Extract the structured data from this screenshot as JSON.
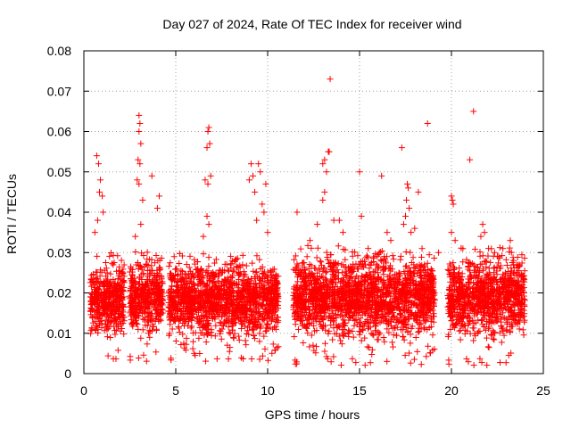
{
  "chart_data": {
    "type": "scatter",
    "title": "Day 027 of 2024, Rate Of TEC Index for receiver wind",
    "xlabel": "GPS time / hours",
    "ylabel": "ROTI / TECUs",
    "xlim": [
      0,
      25
    ],
    "ylim": [
      0,
      0.08
    ],
    "xticks": [
      0,
      5,
      10,
      15,
      20,
      25
    ],
    "xtick_labels": [
      "0",
      "5",
      "10",
      "15",
      "20",
      "25"
    ],
    "yticks": [
      0,
      0.01,
      0.02,
      0.03,
      0.04,
      0.05,
      0.06,
      0.07,
      0.08
    ],
    "ytick_labels": [
      "0",
      "0.01",
      "0.02",
      "0.03",
      "0.04",
      "0.05",
      "0.06",
      "0.07",
      "0.08"
    ],
    "grid": true,
    "marker": "plus",
    "color": "#ff0000",
    "series": [
      {
        "name": "ROTI",
        "segments": [
          {
            "start": 0.35,
            "end": 2.2,
            "low": 0.003,
            "high": 0.03
          },
          {
            "start": 2.5,
            "end": 4.3,
            "low": 0.003,
            "high": 0.031
          },
          {
            "start": 4.6,
            "end": 10.6,
            "low": 0.003,
            "high": 0.03
          },
          {
            "start": 11.4,
            "end": 19.1,
            "low": 0.002,
            "high": 0.032
          },
          {
            "start": 19.8,
            "end": 24.0,
            "low": 0.002,
            "high": 0.032
          }
        ],
        "spikes": [
          {
            "x": 0.7,
            "y": 0.054
          },
          {
            "x": 0.8,
            "y": 0.052
          },
          {
            "x": 0.9,
            "y": 0.048
          },
          {
            "x": 0.85,
            "y": 0.045
          },
          {
            "x": 1.0,
            "y": 0.044
          },
          {
            "x": 1.05,
            "y": 0.04
          },
          {
            "x": 0.75,
            "y": 0.038
          },
          {
            "x": 0.6,
            "y": 0.035
          },
          {
            "x": 3.0,
            "y": 0.064
          },
          {
            "x": 3.05,
            "y": 0.062
          },
          {
            "x": 3.0,
            "y": 0.06
          },
          {
            "x": 3.1,
            "y": 0.057
          },
          {
            "x": 2.95,
            "y": 0.053
          },
          {
            "x": 3.05,
            "y": 0.052
          },
          {
            "x": 2.9,
            "y": 0.048
          },
          {
            "x": 3.0,
            "y": 0.047
          },
          {
            "x": 3.2,
            "y": 0.043
          },
          {
            "x": 3.1,
            "y": 0.037
          },
          {
            "x": 2.8,
            "y": 0.034
          },
          {
            "x": 3.7,
            "y": 0.049
          },
          {
            "x": 4.1,
            "y": 0.044
          },
          {
            "x": 4.0,
            "y": 0.041
          },
          {
            "x": 6.8,
            "y": 0.061
          },
          {
            "x": 6.75,
            "y": 0.06
          },
          {
            "x": 6.85,
            "y": 0.057
          },
          {
            "x": 6.7,
            "y": 0.056
          },
          {
            "x": 6.6,
            "y": 0.048
          },
          {
            "x": 6.75,
            "y": 0.047
          },
          {
            "x": 6.9,
            "y": 0.049
          },
          {
            "x": 6.7,
            "y": 0.039
          },
          {
            "x": 6.8,
            "y": 0.037
          },
          {
            "x": 6.5,
            "y": 0.034
          },
          {
            "x": 9.1,
            "y": 0.052
          },
          {
            "x": 9.2,
            "y": 0.049
          },
          {
            "x": 9.0,
            "y": 0.048
          },
          {
            "x": 9.3,
            "y": 0.045
          },
          {
            "x": 9.5,
            "y": 0.052
          },
          {
            "x": 9.6,
            "y": 0.05
          },
          {
            "x": 9.7,
            "y": 0.042
          },
          {
            "x": 9.8,
            "y": 0.04
          },
          {
            "x": 9.9,
            "y": 0.047
          },
          {
            "x": 9.4,
            "y": 0.038
          },
          {
            "x": 10.0,
            "y": 0.035
          },
          {
            "x": 11.6,
            "y": 0.04
          },
          {
            "x": 12.3,
            "y": 0.033
          },
          {
            "x": 12.7,
            "y": 0.037
          },
          {
            "x": 13.0,
            "y": 0.052
          },
          {
            "x": 13.1,
            "y": 0.053
          },
          {
            "x": 13.2,
            "y": 0.05
          },
          {
            "x": 13.3,
            "y": 0.055
          },
          {
            "x": 13.4,
            "y": 0.073
          },
          {
            "x": 13.35,
            "y": 0.055
          },
          {
            "x": 13.1,
            "y": 0.045
          },
          {
            "x": 13.0,
            "y": 0.043
          },
          {
            "x": 13.6,
            "y": 0.038
          },
          {
            "x": 13.9,
            "y": 0.038
          },
          {
            "x": 14.1,
            "y": 0.035
          },
          {
            "x": 15.0,
            "y": 0.05
          },
          {
            "x": 15.1,
            "y": 0.039
          },
          {
            "x": 16.2,
            "y": 0.049
          },
          {
            "x": 16.5,
            "y": 0.035
          },
          {
            "x": 16.7,
            "y": 0.033
          },
          {
            "x": 17.3,
            "y": 0.056
          },
          {
            "x": 17.6,
            "y": 0.047
          },
          {
            "x": 17.65,
            "y": 0.046
          },
          {
            "x": 17.55,
            "y": 0.043
          },
          {
            "x": 17.7,
            "y": 0.041
          },
          {
            "x": 17.5,
            "y": 0.039
          },
          {
            "x": 17.4,
            "y": 0.037
          },
          {
            "x": 17.8,
            "y": 0.035
          },
          {
            "x": 18.0,
            "y": 0.036
          },
          {
            "x": 18.2,
            "y": 0.045
          },
          {
            "x": 18.4,
            "y": 0.031
          },
          {
            "x": 18.7,
            "y": 0.062
          },
          {
            "x": 19.3,
            "y": 0.03
          },
          {
            "x": 20.0,
            "y": 0.044
          },
          {
            "x": 20.05,
            "y": 0.043
          },
          {
            "x": 20.1,
            "y": 0.042
          },
          {
            "x": 20.0,
            "y": 0.035
          },
          {
            "x": 20.2,
            "y": 0.033
          },
          {
            "x": 21.0,
            "y": 0.053
          },
          {
            "x": 21.2,
            "y": 0.065
          },
          {
            "x": 21.7,
            "y": 0.037
          },
          {
            "x": 21.8,
            "y": 0.035
          },
          {
            "x": 21.6,
            "y": 0.034
          },
          {
            "x": 22.8,
            "y": 0.031
          },
          {
            "x": 23.2,
            "y": 0.033
          }
        ]
      }
    ]
  }
}
